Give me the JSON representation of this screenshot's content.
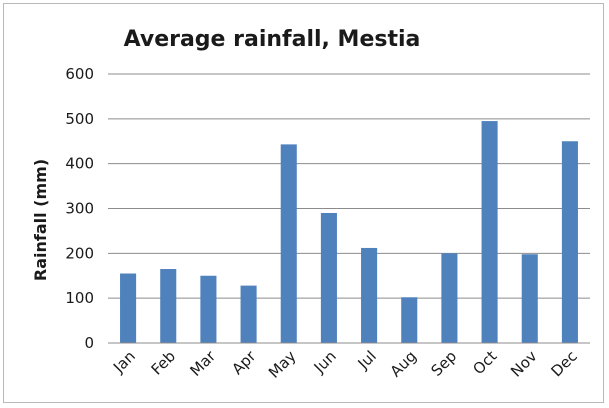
{
  "chart_data": {
    "type": "bar",
    "title": "Average rainfall, Mestia",
    "xlabel": "",
    "ylabel": "Rainfall (mm)",
    "ylim": [
      0,
      600
    ],
    "yticks": [
      0,
      100,
      200,
      300,
      400,
      500,
      600
    ],
    "grid": true,
    "legend": "none",
    "categories": [
      "Jan",
      "Feb",
      "Mar",
      "Apr",
      "May",
      "Jun",
      "Jul",
      "Aug",
      "Sep",
      "Oct",
      "Nov",
      "Dec"
    ],
    "values": [
      155,
      165,
      150,
      128,
      443,
      290,
      212,
      102,
      200,
      495,
      198,
      450
    ],
    "colors": {
      "bar": "#4f81bd",
      "grid": "#8c8c8c",
      "axis": "#8c8c8c",
      "border": "#b9b9b9"
    }
  }
}
